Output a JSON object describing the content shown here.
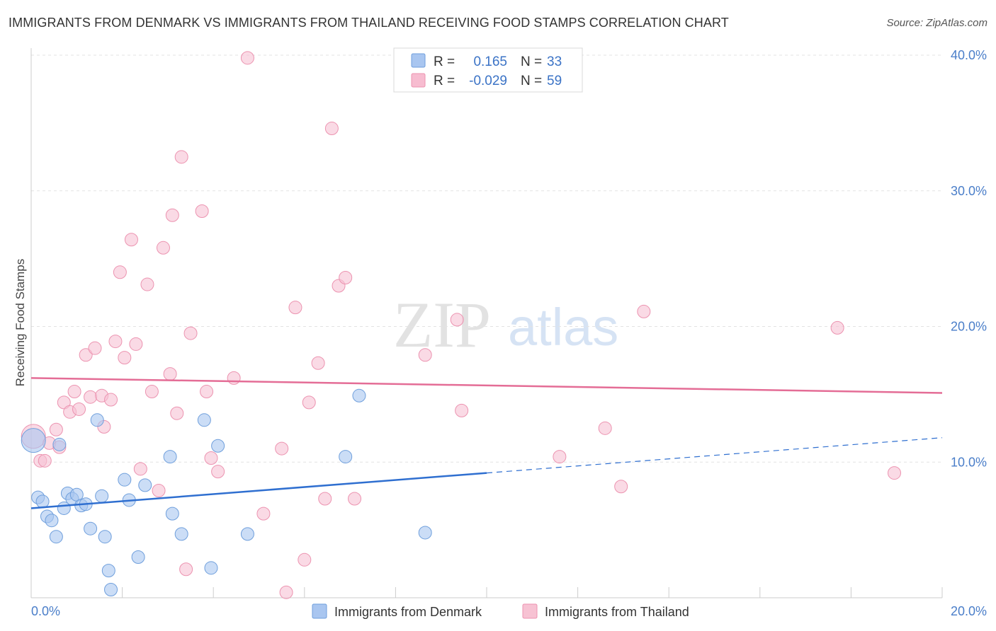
{
  "header": {
    "title": "IMMIGRANTS FROM DENMARK VS IMMIGRANTS FROM THAILAND RECEIVING FOOD STAMPS CORRELATION CHART",
    "source": "Source: ZipAtlas.com"
  },
  "watermark": {
    "zip": "ZIP",
    "atlas": "atlas"
  },
  "stats_box": [
    {
      "r_label": "R =",
      "r_value": "0.165",
      "n_label": "N =",
      "n_value": "33",
      "color": "#a9c6f0"
    },
    {
      "r_label": "R =",
      "r_value": "-0.029",
      "n_label": "N =",
      "n_value": "59",
      "color": "#f7bcd0"
    }
  ],
  "colors": {
    "denmark_fill": "#a9c6f0",
    "denmark_stroke": "#6f9fdc",
    "denmark_line": "#2f6fd0",
    "thailand_fill": "#f7c2d3",
    "thailand_stroke": "#ec93b0",
    "thailand_line": "#e46d96",
    "tick_text": "#4a7ec9"
  },
  "chart_data": {
    "type": "scatter",
    "title": "IMMIGRANTS FROM DENMARK VS IMMIGRANTS FROM THAILAND RECEIVING FOOD STAMPS CORRELATION CHART",
    "xlabel": "",
    "ylabel": "Receiving Food Stamps",
    "xlim": [
      0,
      20
    ],
    "ylim": [
      0,
      40
    ],
    "x_tick_labels": [
      "0.0%",
      "20.0%"
    ],
    "y_ticks": [
      10,
      20,
      30,
      40
    ],
    "y_tick_labels": [
      "10.0%",
      "20.0%",
      "30.0%",
      "40.0%"
    ],
    "grid": true,
    "legend_position": "bottom-center",
    "series": [
      {
        "name": "Immigrants from Denmark",
        "r": 0.165,
        "n": 33,
        "trend": {
          "x0": 0,
          "y0": 6.6,
          "x1": 20,
          "y1": 11.8,
          "solid_until_x": 10
        },
        "points": [
          [
            0.05,
            11.6
          ],
          [
            0.15,
            7.4
          ],
          [
            0.25,
            7.1
          ],
          [
            0.35,
            6.0
          ],
          [
            0.45,
            5.7
          ],
          [
            0.55,
            4.5
          ],
          [
            0.62,
            11.3
          ],
          [
            0.72,
            6.6
          ],
          [
            0.8,
            7.7
          ],
          [
            0.9,
            7.3
          ],
          [
            1.0,
            7.6
          ],
          [
            1.1,
            6.8
          ],
          [
            1.2,
            6.9
          ],
          [
            1.3,
            5.1
          ],
          [
            1.45,
            13.1
          ],
          [
            1.55,
            7.5
          ],
          [
            1.62,
            4.5
          ],
          [
            1.7,
            2.0
          ],
          [
            1.75,
            0.6
          ],
          [
            2.05,
            8.7
          ],
          [
            2.15,
            7.2
          ],
          [
            2.35,
            3.0
          ],
          [
            2.5,
            8.3
          ],
          [
            3.05,
            10.4
          ],
          [
            3.1,
            6.2
          ],
          [
            3.3,
            4.7
          ],
          [
            3.8,
            13.1
          ],
          [
            3.95,
            2.2
          ],
          [
            4.1,
            11.2
          ],
          [
            4.75,
            4.7
          ],
          [
            6.9,
            10.4
          ],
          [
            7.2,
            14.9
          ],
          [
            8.65,
            4.8
          ]
        ]
      },
      {
        "name": "Immigrants from Thailand",
        "r": -0.029,
        "n": 59,
        "trend": {
          "x0": 0,
          "y0": 16.2,
          "x1": 20,
          "y1": 15.1
        },
        "points": [
          [
            0.05,
            11.9
          ],
          [
            0.2,
            10.1
          ],
          [
            0.3,
            10.1
          ],
          [
            0.4,
            11.4
          ],
          [
            0.55,
            12.4
          ],
          [
            0.62,
            11.1
          ],
          [
            0.72,
            14.4
          ],
          [
            0.85,
            13.7
          ],
          [
            0.95,
            15.2
          ],
          [
            1.05,
            13.9
          ],
          [
            1.2,
            17.9
          ],
          [
            1.3,
            14.8
          ],
          [
            1.4,
            18.4
          ],
          [
            1.55,
            14.9
          ],
          [
            1.6,
            12.6
          ],
          [
            1.75,
            14.6
          ],
          [
            1.85,
            18.9
          ],
          [
            1.95,
            24.0
          ],
          [
            2.05,
            17.7
          ],
          [
            2.2,
            26.4
          ],
          [
            2.3,
            18.7
          ],
          [
            2.4,
            9.5
          ],
          [
            2.55,
            23.1
          ],
          [
            2.65,
            15.2
          ],
          [
            2.8,
            7.9
          ],
          [
            2.9,
            25.8
          ],
          [
            3.05,
            16.5
          ],
          [
            3.1,
            28.2
          ],
          [
            3.2,
            13.6
          ],
          [
            3.3,
            32.5
          ],
          [
            3.4,
            2.1
          ],
          [
            3.5,
            19.5
          ],
          [
            3.75,
            28.5
          ],
          [
            3.85,
            15.2
          ],
          [
            3.95,
            10.3
          ],
          [
            4.1,
            9.3
          ],
          [
            4.45,
            16.2
          ],
          [
            4.75,
            39.8
          ],
          [
            5.1,
            6.2
          ],
          [
            5.5,
            11.0
          ],
          [
            5.6,
            0.4
          ],
          [
            5.8,
            21.4
          ],
          [
            6.0,
            2.8
          ],
          [
            6.1,
            14.4
          ],
          [
            6.3,
            17.3
          ],
          [
            6.45,
            7.3
          ],
          [
            6.6,
            34.6
          ],
          [
            6.75,
            23.0
          ],
          [
            6.9,
            23.6
          ],
          [
            7.1,
            7.3
          ],
          [
            8.65,
            17.9
          ],
          [
            9.35,
            20.5
          ],
          [
            9.45,
            13.8
          ],
          [
            11.6,
            10.4
          ],
          [
            12.6,
            12.5
          ],
          [
            12.95,
            8.2
          ],
          [
            13.45,
            21.1
          ],
          [
            17.7,
            19.9
          ],
          [
            18.95,
            9.2
          ]
        ]
      }
    ]
  }
}
